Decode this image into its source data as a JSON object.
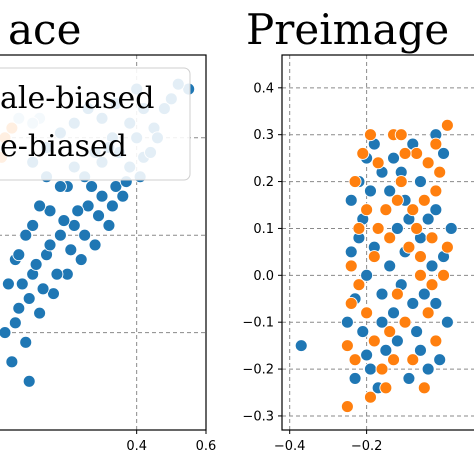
{
  "chart_data": [
    {
      "type": "scatter",
      "title": "ace",
      "xlabel": "",
      "ylabel": "",
      "xlim": [
        0.0,
        0.6
      ],
      "x_ticks": [
        "0.4",
        "0.6"
      ],
      "x_tick_values": [
        0.4,
        0.6
      ],
      "ylim": [
        -0.3,
        0.47
      ],
      "grid": true,
      "legend": {
        "placement": "top-left",
        "entries": [
          {
            "label": "ale-biased",
            "color": "#ff7f0e"
          },
          {
            "label": "e-biased",
            "color": "#1f77b4"
          }
        ]
      },
      "series": [
        {
          "color": "#1f77b4",
          "points": [
            [
              0.05,
              0.05
            ],
            [
              0.1,
              0.12
            ],
            [
              0.15,
              0.15
            ],
            [
              0.2,
              0.2
            ],
            [
              0.25,
              0.22
            ],
            [
              0.3,
              0.25
            ],
            [
              0.35,
              0.27
            ],
            [
              0.4,
              0.3
            ],
            [
              0.45,
              0.32
            ],
            [
              0.5,
              0.38
            ],
            [
              0.55,
              0.4
            ],
            [
              0.52,
              0.41
            ],
            [
              0.48,
              0.36
            ],
            [
              0.42,
              0.36
            ],
            [
              0.38,
              0.33
            ],
            [
              0.33,
              0.3
            ],
            [
              0.28,
              0.27
            ],
            [
              0.22,
              0.24
            ],
            [
              0.18,
              0.2
            ],
            [
              0.12,
              0.16
            ],
            [
              0.08,
              0.1
            ],
            [
              0.03,
              0.0
            ],
            [
              0.06,
              -0.05
            ],
            [
              0.1,
              0.02
            ],
            [
              0.14,
              0.06
            ],
            [
              0.18,
              0.1
            ],
            [
              0.22,
              0.12
            ],
            [
              0.26,
              0.16
            ],
            [
              0.3,
              0.18
            ],
            [
              0.34,
              0.2
            ],
            [
              0.38,
              0.24
            ],
            [
              0.42,
              0.26
            ],
            [
              0.46,
              0.3
            ],
            [
              0.36,
              0.18
            ],
            [
              0.32,
              0.12
            ],
            [
              0.28,
              0.08
            ],
            [
              0.24,
              0.05
            ],
            [
              0.2,
              0.02
            ],
            [
              0.16,
              -0.02
            ],
            [
              0.12,
              -0.06
            ],
            [
              0.08,
              -0.12
            ],
            [
              0.04,
              -0.16
            ],
            [
              0.09,
              -0.2
            ],
            [
              0.02,
              -0.1
            ],
            [
              0.3,
              0.34
            ],
            [
              0.34,
              0.37
            ],
            [
              0.26,
              0.36
            ],
            [
              0.22,
              0.33
            ],
            [
              0.18,
              0.31
            ],
            [
              0.14,
              0.28
            ],
            [
              0.4,
              0.4
            ],
            [
              0.32,
              0.28
            ],
            [
              0.27,
              0.2
            ],
            [
              0.23,
              0.15
            ],
            [
              0.19,
              0.13
            ],
            [
              0.15,
              0.08
            ],
            [
              0.11,
              0.04
            ],
            [
              0.07,
              0.0
            ],
            [
              0.05,
              -0.08
            ],
            [
              0.17,
              0.02
            ],
            [
              0.21,
              0.07
            ],
            [
              0.25,
              0.1
            ],
            [
              0.29,
              0.14
            ],
            [
              0.33,
              0.16
            ],
            [
              0.37,
              0.21
            ],
            [
              0.41,
              0.22
            ],
            [
              0.44,
              0.27
            ],
            [
              0.13,
              -0.01
            ],
            [
              0.09,
              -0.03
            ],
            [
              0.06,
              0.06
            ],
            [
              0.14,
              0.22
            ],
            [
              0.1,
              0.25
            ]
          ]
        },
        {
          "color": "#ff7f0e",
          "points": [
            [
              0.01,
              0.26
            ],
            [
              0.02,
              0.3
            ],
            [
              0.04,
              0.32
            ]
          ]
        },
        {
          "color": "#a6c8e6",
          "points": [
            [
              0.06,
              0.34
            ],
            [
              0.12,
              0.34
            ],
            [
              0.1,
              0.33
            ]
          ]
        }
      ]
    },
    {
      "type": "scatter",
      "title": "Preimage",
      "xlabel": "",
      "ylabel": "",
      "xlim": [
        -0.42,
        0.1
      ],
      "x_ticks": [
        "−0.4",
        "−0.2"
      ],
      "x_tick_values": [
        -0.4,
        -0.2
      ],
      "ylim": [
        -0.33,
        0.47
      ],
      "y_ticks": [
        "0.4",
        "0.3",
        "0.2",
        "0.1",
        "0.0",
        "−0.1",
        "−0.2",
        "−0.3"
      ],
      "y_tick_values": [
        0.4,
        0.3,
        0.2,
        0.1,
        0.0,
        -0.1,
        -0.2,
        -0.3
      ],
      "grid": true,
      "series": [
        {
          "color": "#1f77b4",
          "points": [
            [
              -0.37,
              -0.15
            ],
            [
              -0.24,
              0.16
            ],
            [
              -0.22,
              0.2
            ],
            [
              -0.2,
              0.25
            ],
            [
              -0.18,
              0.28
            ],
            [
              -0.16,
              0.22
            ],
            [
              -0.14,
              0.18
            ],
            [
              -0.12,
              0.1
            ],
            [
              -0.1,
              0.05
            ],
            [
              -0.08,
              0.28
            ],
            [
              -0.06,
              0.2
            ],
            [
              -0.04,
              0.12
            ],
            [
              -0.02,
              0.3
            ],
            [
              0.0,
              0.26
            ],
            [
              -0.23,
              -0.05
            ],
            [
              -0.21,
              -0.12
            ],
            [
              -0.19,
              -0.2
            ],
            [
              -0.17,
              -0.24
            ],
            [
              -0.15,
              -0.16
            ],
            [
              -0.13,
              -0.08
            ],
            [
              -0.11,
              -0.02
            ],
            [
              -0.09,
              -0.22
            ],
            [
              -0.07,
              -0.12
            ],
            [
              -0.05,
              -0.04
            ],
            [
              -0.03,
              0.02
            ],
            [
              -0.01,
              -0.18
            ],
            [
              0.01,
              -0.1
            ],
            [
              -0.22,
              0.08
            ],
            [
              -0.2,
              0.0
            ],
            [
              -0.18,
              0.06
            ],
            [
              -0.16,
              -0.04
            ],
            [
              -0.14,
              0.02
            ],
            [
              -0.12,
              -0.14
            ],
            [
              -0.1,
              0.16
            ],
            [
              -0.08,
              -0.06
            ],
            [
              -0.06,
              0.08
            ],
            [
              -0.04,
              -0.2
            ],
            [
              -0.02,
              0.14
            ],
            [
              0.0,
              0.04
            ],
            [
              -0.21,
              0.12
            ],
            [
              -0.19,
              0.18
            ],
            [
              -0.13,
              0.25
            ],
            [
              -0.11,
              0.22
            ],
            [
              -0.09,
              0.12
            ],
            [
              -0.23,
              -0.22
            ],
            [
              -0.2,
              -0.17
            ],
            [
              -0.16,
              -0.1
            ],
            [
              -0.06,
              -0.16
            ],
            [
              -0.24,
              0.05
            ],
            [
              -0.25,
              -0.1
            ],
            [
              -0.02,
              -0.06
            ],
            [
              0.02,
              0.1
            ]
          ]
        },
        {
          "color": "#ff7f0e",
          "points": [
            [
              -0.25,
              -0.28
            ],
            [
              -0.25,
              -0.15
            ],
            [
              -0.23,
              0.2
            ],
            [
              -0.21,
              0.26
            ],
            [
              -0.19,
              0.3
            ],
            [
              -0.17,
              0.24
            ],
            [
              -0.15,
              0.14
            ],
            [
              -0.13,
              0.3
            ],
            [
              -0.11,
              0.2
            ],
            [
              -0.09,
              0.06
            ],
            [
              -0.07,
              0.26
            ],
            [
              -0.05,
              0.16
            ],
            [
              -0.03,
              0.08
            ],
            [
              -0.01,
              0.22
            ],
            [
              0.01,
              0.32
            ],
            [
              -0.22,
              -0.02
            ],
            [
              -0.2,
              -0.08
            ],
            [
              -0.18,
              -0.14
            ],
            [
              -0.16,
              -0.2
            ],
            [
              -0.14,
              -0.12
            ],
            [
              -0.12,
              -0.04
            ],
            [
              -0.1,
              -0.1
            ],
            [
              -0.08,
              -0.18
            ],
            [
              -0.06,
              0.0
            ],
            [
              -0.04,
              -0.08
            ],
            [
              -0.02,
              -0.14
            ],
            [
              0.0,
              0.0
            ],
            [
              -0.24,
              0.02
            ],
            [
              -0.22,
              0.1
            ],
            [
              -0.2,
              0.14
            ],
            [
              -0.18,
              0.04
            ],
            [
              -0.14,
              0.08
            ],
            [
              -0.12,
              0.16
            ],
            [
              -0.1,
              0.26
            ],
            [
              -0.08,
              0.14
            ],
            [
              -0.06,
              0.04
            ],
            [
              -0.04,
              0.24
            ],
            [
              -0.02,
              0.18
            ],
            [
              0.01,
              0.06
            ],
            [
              -0.19,
              -0.26
            ],
            [
              -0.15,
              -0.24
            ],
            [
              -0.05,
              -0.24
            ],
            [
              -0.23,
              -0.18
            ],
            [
              -0.17,
              0.1
            ],
            [
              -0.13,
              -0.18
            ],
            [
              -0.07,
              0.1
            ],
            [
              -0.03,
              -0.02
            ],
            [
              -0.24,
              -0.06
            ],
            [
              -0.02,
              0.28
            ],
            [
              -0.11,
              0.3
            ]
          ]
        }
      ]
    }
  ]
}
